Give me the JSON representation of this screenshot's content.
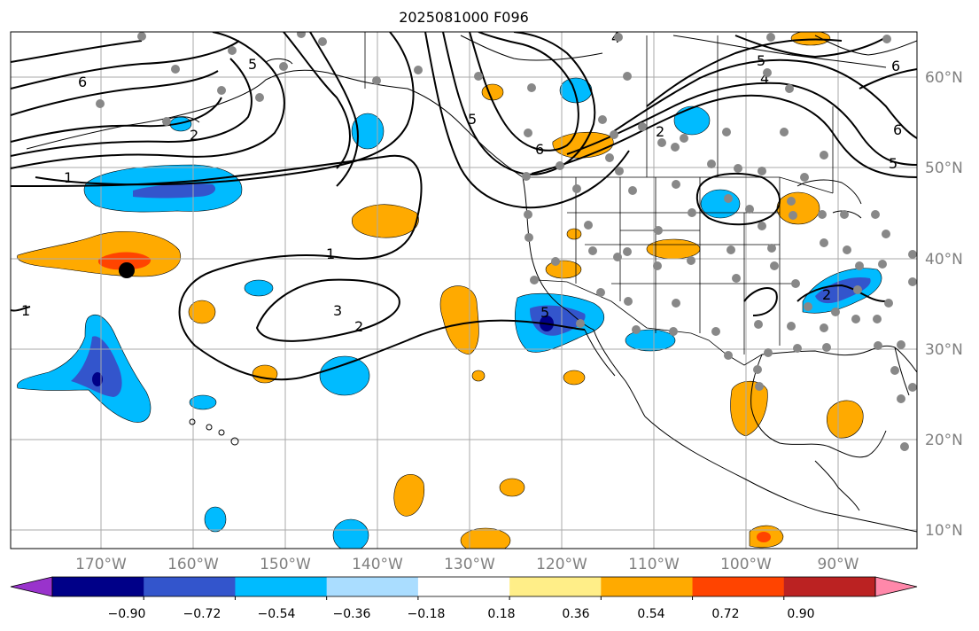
{
  "title": "2025081000 F096",
  "lon_labels": [
    "170°W",
    "160°W",
    "150°W",
    "140°W",
    "130°W",
    "120°W",
    "110°W",
    "100°W",
    "90°W"
  ],
  "lat_labels": [
    "60°N",
    "50°N",
    "40°N",
    "30°N",
    "20°N",
    "10°N"
  ],
  "colorbar": {
    "colors": [
      "#9933cc",
      "#000088",
      "#3355cc",
      "#00bbff",
      "#aaddff",
      "#ffffff",
      "#ffee88",
      "#ffaa00",
      "#ff4400",
      "#bb2222",
      "#ff88aa"
    ],
    "tick_labels": [
      "−0.90",
      "−0.72",
      "−0.54",
      "−0.36",
      "−0.18",
      "0.18",
      "0.36",
      "0.54",
      "0.72",
      "0.90"
    ]
  },
  "contour_labels": [
    "6",
    "5",
    "2",
    "1",
    "1",
    "3",
    "2",
    "4",
    "5",
    "6",
    "5",
    "2",
    "6",
    "4",
    "5",
    "6",
    "5",
    "2",
    "1"
  ],
  "colors": {
    "label_gray": "#808080",
    "station_gray": "#888888",
    "grid_gray": "#aaaaaa"
  }
}
